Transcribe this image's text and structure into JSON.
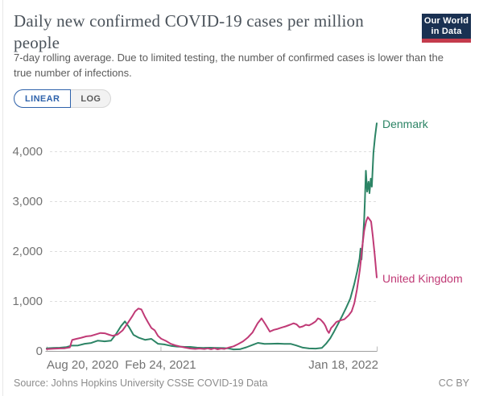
{
  "header": {
    "title": "Daily new confirmed COVID-19 cases per million people",
    "subtitle": "7-day rolling average. Due to limited testing, the number of confirmed cases is lower than the true number of infections.",
    "logo_line1": "Our World",
    "logo_line2": "in Data"
  },
  "controls": {
    "linear_label": "LINEAR",
    "log_label": "LOG",
    "selected": "LINEAR"
  },
  "footer": {
    "source": "Source: Johns Hopkins University CSSE COVID-19 Data",
    "license": "CC BY"
  },
  "colors": {
    "denmark": "#2c8465",
    "united_kingdom": "#c03a76",
    "accent_blue": "#2e62ab",
    "logo_navy": "#1a3152",
    "logo_red": "#c43b4c",
    "grid": "#dddddd",
    "axis": "#9e9e9e",
    "axis_text": "#737373"
  },
  "chart_data": {
    "type": "line",
    "title": "Daily new confirmed COVID-19 cases per million people",
    "xlabel": "",
    "ylabel": "",
    "ylim": [
      0,
      4650
    ],
    "grid": "horizontal-dashed",
    "legend_position": "line-end-labels",
    "y_ticks": [
      {
        "value": 0,
        "label": "0"
      },
      {
        "value": 1000,
        "label": "1,000"
      },
      {
        "value": 2000,
        "label": "2,000"
      },
      {
        "value": 3000,
        "label": "3,000"
      },
      {
        "value": 4000,
        "label": "4,000"
      }
    ],
    "x_ticks": [
      {
        "pos": 0,
        "label": "Aug 20, 2020",
        "align": "start"
      },
      {
        "pos": 0.345,
        "label": "Feb 24, 2021",
        "align": "middle"
      },
      {
        "pos": 1,
        "label": "Jan 18, 2022",
        "align": "end"
      }
    ],
    "x_range_note": "pos is fraction of date axis from Aug 20, 2020 to Jan 18, 2022",
    "series": [
      {
        "name": "Denmark",
        "color": "#2c8465",
        "points": [
          [
            0,
            60
          ],
          [
            0.02,
            68
          ],
          [
            0.04,
            72
          ],
          [
            0.06,
            85
          ],
          [
            0.075,
            115
          ],
          [
            0.095,
            118
          ],
          [
            0.115,
            152
          ],
          [
            0.135,
            168
          ],
          [
            0.155,
            215
          ],
          [
            0.175,
            200
          ],
          [
            0.195,
            215
          ],
          [
            0.21,
            345
          ],
          [
            0.225,
            505
          ],
          [
            0.237,
            600
          ],
          [
            0.25,
            480
          ],
          [
            0.263,
            330
          ],
          [
            0.278,
            275
          ],
          [
            0.298,
            230
          ],
          [
            0.317,
            250
          ],
          [
            0.337,
            152
          ],
          [
            0.356,
            138
          ],
          [
            0.376,
            110
          ],
          [
            0.395,
            95
          ],
          [
            0.415,
            90
          ],
          [
            0.435,
            88
          ],
          [
            0.455,
            75
          ],
          [
            0.475,
            70
          ],
          [
            0.495,
            72
          ],
          [
            0.515,
            70
          ],
          [
            0.535,
            66
          ],
          [
            0.551,
            58
          ],
          [
            0.566,
            38
          ],
          [
            0.585,
            42
          ],
          [
            0.605,
            80
          ],
          [
            0.625,
            132
          ],
          [
            0.64,
            170
          ],
          [
            0.66,
            150
          ],
          [
            0.68,
            152
          ],
          [
            0.7,
            155
          ],
          [
            0.72,
            150
          ],
          [
            0.74,
            148
          ],
          [
            0.756,
            118
          ],
          [
            0.776,
            75
          ],
          [
            0.795,
            58
          ],
          [
            0.815,
            55
          ],
          [
            0.834,
            70
          ],
          [
            0.846,
            150
          ],
          [
            0.859,
            260
          ],
          [
            0.871,
            400
          ],
          [
            0.883,
            550
          ],
          [
            0.895,
            705
          ],
          [
            0.907,
            870
          ],
          [
            0.92,
            1060
          ],
          [
            0.932,
            1350
          ],
          [
            0.941,
            1610
          ],
          [
            0.948,
            1860
          ],
          [
            0.951,
            2060
          ],
          [
            0.954,
            1840
          ],
          [
            0.959,
            2320
          ],
          [
            0.962,
            2650
          ],
          [
            0.964,
            2980
          ],
          [
            0.967,
            3620
          ],
          [
            0.971,
            3200
          ],
          [
            0.975,
            3400
          ],
          [
            0.978,
            3170
          ],
          [
            0.982,
            3460
          ],
          [
            0.985,
            3300
          ],
          [
            0.99,
            3980
          ],
          [
            0.995,
            4300
          ],
          [
            1,
            4570
          ]
        ]
      },
      {
        "name": "United Kingdom",
        "color": "#c03a76",
        "points": [
          [
            0,
            45
          ],
          [
            0.02,
            52
          ],
          [
            0.04,
            58
          ],
          [
            0.055,
            62
          ],
          [
            0.07,
            78
          ],
          [
            0.077,
            228
          ],
          [
            0.09,
            250
          ],
          [
            0.105,
            272
          ],
          [
            0.12,
            300
          ],
          [
            0.135,
            312
          ],
          [
            0.15,
            342
          ],
          [
            0.163,
            368
          ],
          [
            0.176,
            362
          ],
          [
            0.19,
            330
          ],
          [
            0.2,
            312
          ],
          [
            0.215,
            338
          ],
          [
            0.23,
            420
          ],
          [
            0.245,
            560
          ],
          [
            0.259,
            700
          ],
          [
            0.268,
            800
          ],
          [
            0.278,
            858
          ],
          [
            0.287,
            838
          ],
          [
            0.297,
            700
          ],
          [
            0.307,
            580
          ],
          [
            0.317,
            470
          ],
          [
            0.327,
            422
          ],
          [
            0.337,
            312
          ],
          [
            0.347,
            252
          ],
          [
            0.361,
            210
          ],
          [
            0.376,
            150
          ],
          [
            0.39,
            120
          ],
          [
            0.405,
            95
          ],
          [
            0.42,
            74
          ],
          [
            0.435,
            56
          ],
          [
            0.45,
            48
          ],
          [
            0.463,
            56
          ],
          [
            0.478,
            46
          ],
          [
            0.488,
            60
          ],
          [
            0.498,
            42
          ],
          [
            0.508,
            62
          ],
          [
            0.518,
            40
          ],
          [
            0.528,
            56
          ],
          [
            0.538,
            48
          ],
          [
            0.551,
            74
          ],
          [
            0.566,
            100
          ],
          [
            0.58,
            145
          ],
          [
            0.595,
            200
          ],
          [
            0.61,
            280
          ],
          [
            0.624,
            380
          ],
          [
            0.639,
            560
          ],
          [
            0.651,
            662
          ],
          [
            0.663,
            540
          ],
          [
            0.676,
            395
          ],
          [
            0.688,
            430
          ],
          [
            0.7,
            450
          ],
          [
            0.712,
            478
          ],
          [
            0.724,
            500
          ],
          [
            0.737,
            532
          ],
          [
            0.748,
            562
          ],
          [
            0.757,
            540
          ],
          [
            0.766,
            482
          ],
          [
            0.776,
            500
          ],
          [
            0.785,
            532
          ],
          [
            0.795,
            520
          ],
          [
            0.805,
            556
          ],
          [
            0.815,
            600
          ],
          [
            0.822,
            662
          ],
          [
            0.829,
            640
          ],
          [
            0.835,
            600
          ],
          [
            0.84,
            560
          ],
          [
            0.845,
            505
          ],
          [
            0.85,
            420
          ],
          [
            0.855,
            368
          ],
          [
            0.862,
            470
          ],
          [
            0.868,
            512
          ],
          [
            0.878,
            590
          ],
          [
            0.89,
            620
          ],
          [
            0.902,
            642
          ],
          [
            0.915,
            722
          ],
          [
            0.924,
            800
          ],
          [
            0.932,
            962
          ],
          [
            0.94,
            1235
          ],
          [
            0.949,
            1640
          ],
          [
            0.956,
            2090
          ],
          [
            0.962,
            2415
          ],
          [
            0.968,
            2610
          ],
          [
            0.973,
            2688
          ],
          [
            0.978,
            2645
          ],
          [
            0.983,
            2600
          ],
          [
            0.988,
            2312
          ],
          [
            0.994,
            1930
          ],
          [
            1,
            1480
          ]
        ]
      }
    ]
  }
}
